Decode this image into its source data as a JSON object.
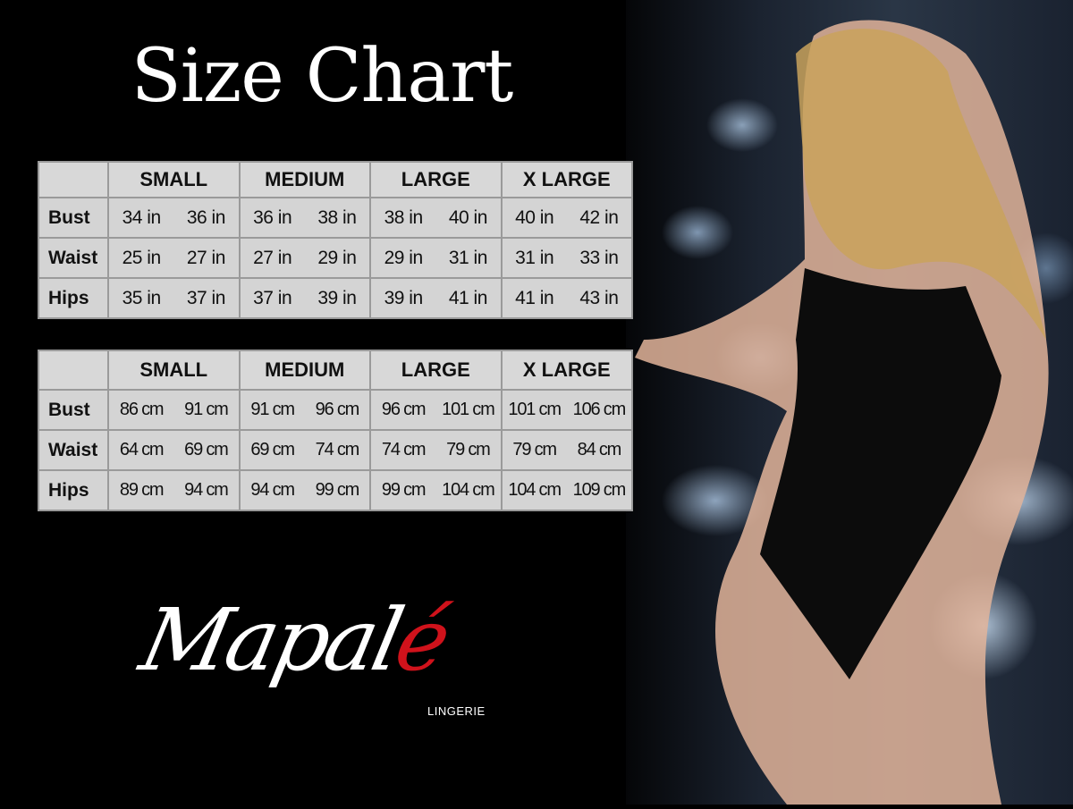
{
  "title": "Size Chart",
  "sizes": [
    "SMALL",
    "MEDIUM",
    "LARGE",
    "X LARGE"
  ],
  "inches": {
    "rows": [
      {
        "label": "Bust",
        "values": [
          "34 in",
          "36 in",
          "36 in",
          "38 in",
          "38 in",
          "40 in",
          "40 in",
          "42 in"
        ]
      },
      {
        "label": "Waist",
        "values": [
          "25 in",
          "27 in",
          "27 in",
          "29 in",
          "29 in",
          "31 in",
          "31 in",
          "33 in"
        ]
      },
      {
        "label": "Hips",
        "values": [
          "35 in",
          "37 in",
          "37 in",
          "39 in",
          "39 in",
          "41 in",
          "41 in",
          "43 in"
        ]
      }
    ]
  },
  "cm": {
    "rows": [
      {
        "label": "Bust",
        "values": [
          "86 cm",
          "91 cm",
          "91 cm",
          "96 cm",
          "96 cm",
          "101 cm",
          "101 cm",
          "106 cm"
        ]
      },
      {
        "label": "Waist",
        "values": [
          "64 cm",
          "69 cm",
          "69 cm",
          "74 cm",
          "74 cm",
          "79  cm",
          "79 cm",
          "84 cm"
        ]
      },
      {
        "label": "Hips",
        "values": [
          "89 cm",
          "94 cm",
          "94 cm",
          "99 cm",
          "99 cm",
          "104 cm",
          "104 cm",
          "109 cm"
        ]
      }
    ]
  },
  "logo": {
    "main": "Mapal",
    "accent": "é",
    "sub": "LINGERIE",
    "accent_color": "#d0121b"
  }
}
